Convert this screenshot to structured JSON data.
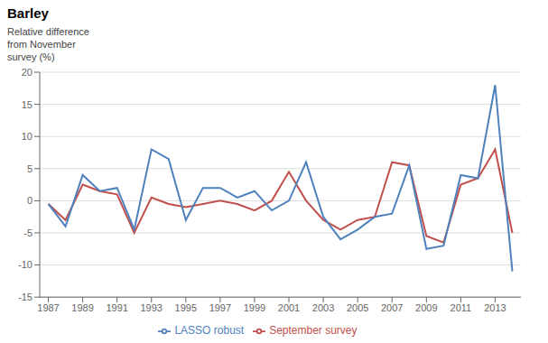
{
  "chart_data": {
    "type": "line",
    "title": "Barley",
    "ylabel": "Relative difference\nfrom November\nsurvey (%)",
    "x": [
      1987,
      1988,
      1989,
      1990,
      1991,
      1992,
      1993,
      1994,
      1995,
      1996,
      1997,
      1998,
      1999,
      2000,
      2001,
      2002,
      2003,
      2004,
      2005,
      2006,
      2007,
      2008,
      2009,
      2010,
      2011,
      2012,
      2013,
      2014
    ],
    "series": [
      {
        "name": "September survey",
        "color": "#C0504D",
        "values": [
          -0.5,
          -3.0,
          2.5,
          1.5,
          1.0,
          -5.0,
          0.5,
          -0.5,
          -1.0,
          -0.5,
          0.0,
          -0.5,
          -1.5,
          0.0,
          4.5,
          0.0,
          -3.0,
          -4.5,
          -3.0,
          -2.5,
          6.0,
          5.5,
          -5.5,
          -6.5,
          2.5,
          3.5,
          8.0,
          -5.0
        ]
      },
      {
        "name": "LASSO robust",
        "color": "#4F81BD",
        "values": [
          -0.5,
          -4.0,
          4.0,
          1.5,
          2.0,
          -4.5,
          8.0,
          6.5,
          -3.0,
          2.0,
          2.0,
          0.5,
          1.5,
          -1.5,
          0.0,
          6.0,
          -2.5,
          -6.0,
          -4.5,
          -2.5,
          -2.0,
          5.5,
          -7.5,
          -7.0,
          4.0,
          3.5,
          18.0,
          -11.0
        ]
      }
    ],
    "xlim": [
      1986.5,
      2014.5
    ],
    "xticks": [
      1987,
      1989,
      1991,
      1993,
      1995,
      1997,
      1999,
      2001,
      2003,
      2005,
      2007,
      2009,
      2011,
      2013
    ],
    "ylim": [
      -15,
      20
    ],
    "yticks": [
      -15,
      -10,
      -5,
      0,
      5,
      10,
      15,
      20
    ],
    "grid": "y",
    "legend": "bottom"
  }
}
